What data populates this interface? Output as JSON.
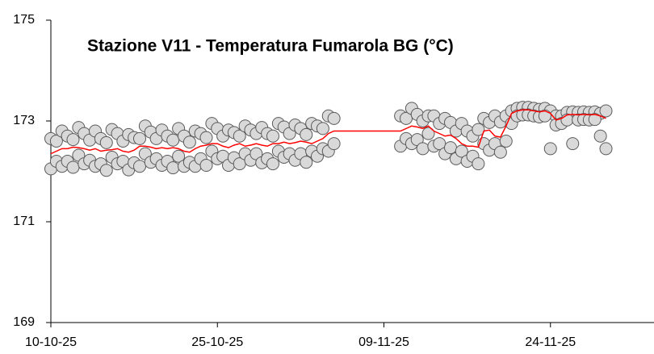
{
  "chart_data": {
    "type": "scatter",
    "title": "Stazione V11 - Temperatura Fumarola BG (°C)",
    "x": [
      0,
      0.5,
      1,
      1.5,
      2,
      2.5,
      3,
      3.5,
      4,
      4.5,
      5,
      5.5,
      6,
      6.5,
      7,
      7.5,
      8,
      8.5,
      9,
      9.5,
      10,
      10.5,
      11,
      11.5,
      12,
      12.5,
      13,
      13.5,
      14,
      14.5,
      15,
      15.5,
      16,
      16.5,
      17,
      17.5,
      18,
      18.5,
      19,
      19.5,
      20,
      20.5,
      21,
      21.5,
      22,
      22.5,
      23,
      23.5,
      24,
      24.5,
      25,
      25.5,
      31.5,
      32,
      32.5,
      33,
      33.5,
      34,
      34.5,
      35,
      35.5,
      36,
      36.5,
      37,
      37.5,
      38,
      38.5,
      39,
      39.5,
      40,
      40.5,
      41,
      41.5,
      42,
      42.5,
      43,
      43.5,
      44,
      44.5,
      45,
      45.5,
      46,
      46.5,
      47,
      47.5,
      48,
      48.5,
      49,
      49.5,
      50
    ],
    "series": [
      {
        "type": "scatter",
        "color": "#d9d9d9",
        "values": [
          172.65,
          172.6,
          172.8,
          172.7,
          172.63,
          172.87,
          172.75,
          172.62,
          172.8,
          172.65,
          172.57,
          172.83,
          172.75,
          172.6,
          172.73,
          172.67,
          172.65,
          172.9,
          172.78,
          172.65,
          172.82,
          172.7,
          172.62,
          172.85,
          172.7,
          172.58,
          172.8,
          172.75,
          172.67,
          172.95,
          172.85,
          172.7,
          172.82,
          172.77,
          172.7,
          172.9,
          172.82,
          172.75,
          172.87,
          172.75,
          172.7,
          172.95,
          172.88,
          172.75,
          172.92,
          172.85,
          172.73,
          172.95,
          172.9,
          172.85,
          173.1,
          173.05,
          173.1,
          173.05,
          173.25,
          173.13,
          173.0,
          173.1,
          173.1,
          172.95,
          173.05,
          172.97,
          172.8,
          172.95,
          172.8,
          172.7,
          172.83,
          173.05,
          172.97,
          173.1,
          172.98,
          173.1,
          173.2,
          173.25,
          173.27,
          173.27,
          173.25,
          173.23,
          173.25,
          173.2,
          173.1,
          173.1,
          173.17,
          173.18,
          173.17,
          173.18,
          173.17,
          173.18,
          173.15,
          173.2
        ]
      },
      {
        "type": "scatter",
        "color": "#d9d9d9",
        "values": [
          172.05,
          172.2,
          172.1,
          172.2,
          172.08,
          172.32,
          172.15,
          172.22,
          172.1,
          172.15,
          172.02,
          172.28,
          172.15,
          172.2,
          172.03,
          172.17,
          172.1,
          172.35,
          172.18,
          172.25,
          172.12,
          172.2,
          172.07,
          172.3,
          172.1,
          172.18,
          172.1,
          172.25,
          172.12,
          172.4,
          172.25,
          172.3,
          172.12,
          172.27,
          172.15,
          172.35,
          172.22,
          172.35,
          172.17,
          172.25,
          172.15,
          172.4,
          172.28,
          172.35,
          172.22,
          172.35,
          172.18,
          172.4,
          172.3,
          172.45,
          172.4,
          172.55,
          172.5,
          172.65,
          172.55,
          172.63,
          172.45,
          172.75,
          172.5,
          172.55,
          172.35,
          172.47,
          172.25,
          172.4,
          172.2,
          172.3,
          172.15,
          172.55,
          172.42,
          172.55,
          172.38,
          172.6,
          172.95,
          173.1,
          173.12,
          173.12,
          173.1,
          173.08,
          173.1,
          172.45,
          172.92,
          172.95,
          173.02,
          172.55,
          173.02,
          173.03,
          173.02,
          173.03,
          172.7,
          172.45
        ]
      },
      {
        "type": "line",
        "color": "#ff0000",
        "values": [
          172.35,
          172.4,
          172.45,
          172.45,
          172.48,
          172.47,
          172.45,
          172.42,
          172.45,
          172.4,
          172.42,
          172.43,
          172.45,
          172.4,
          172.38,
          172.42,
          172.5,
          172.5,
          172.48,
          172.45,
          172.47,
          172.45,
          172.47,
          172.45,
          172.4,
          172.38,
          172.45,
          172.5,
          172.52,
          172.55,
          172.55,
          172.5,
          172.47,
          172.52,
          172.55,
          172.5,
          172.52,
          172.55,
          172.52,
          172.5,
          172.55,
          172.55,
          172.58,
          172.55,
          172.57,
          172.6,
          172.58,
          172.55,
          172.6,
          172.65,
          172.75,
          172.8,
          172.8,
          172.85,
          172.9,
          172.88,
          172.85,
          172.9,
          172.8,
          172.75,
          172.7,
          172.72,
          172.65,
          172.55,
          172.5,
          172.5,
          172.48,
          172.8,
          172.82,
          172.7,
          172.68,
          172.9,
          173.15,
          173.2,
          173.22,
          173.22,
          173.2,
          173.18,
          173.2,
          173.15,
          173.02,
          173.05,
          173.12,
          173.13,
          173.12,
          173.13,
          173.12,
          173.13,
          173.1,
          173.05
        ]
      }
    ],
    "xlim": [
      0,
      54
    ],
    "xticks": [
      {
        "value": 0,
        "label": "10-10-25"
      },
      {
        "value": 15,
        "label": "25-10-25"
      },
      {
        "value": 30,
        "label": "09-11-25"
      },
      {
        "value": 45,
        "label": "24-11-25"
      }
    ],
    "ylim": [
      169,
      175
    ],
    "yticks": [
      169,
      171,
      173,
      175
    ]
  }
}
